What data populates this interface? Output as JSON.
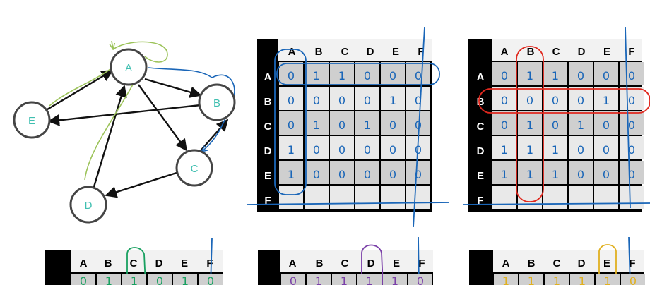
{
  "graph": {
    "nodes": [
      {
        "id": "A",
        "label": "A"
      },
      {
        "id": "B",
        "label": "B"
      },
      {
        "id": "C",
        "label": "C"
      },
      {
        "id": "D",
        "label": "D"
      },
      {
        "id": "E",
        "label": "E"
      }
    ],
    "edges": [
      {
        "from": "A",
        "to": "B"
      },
      {
        "from": "A",
        "to": "C"
      },
      {
        "from": "B",
        "to": "E"
      },
      {
        "from": "C",
        "to": "D"
      },
      {
        "from": "D",
        "to": "A"
      },
      {
        "from": "E",
        "to": "A"
      },
      {
        "from": "C",
        "to": "B"
      }
    ]
  },
  "matrices": {
    "col_headers": [
      "A",
      "B",
      "C",
      "D",
      "E",
      "F"
    ],
    "row_headers": [
      "A",
      "B",
      "C",
      "D",
      "E",
      "F"
    ],
    "matrix_1": {
      "annotation_color": "#1a66b8",
      "cells": [
        [
          "0",
          "1",
          "1",
          "0",
          "0",
          "0"
        ],
        [
          "0",
          "0",
          "0",
          "0",
          "1",
          "0"
        ],
        [
          "0",
          "1",
          "0",
          "1",
          "0",
          "0"
        ],
        [
          "1",
          "0",
          "0",
          "0",
          "0",
          "0"
        ],
        [
          "1",
          "0",
          "0",
          "0",
          "0",
          "0"
        ],
        [
          "",
          "",
          "",
          "",
          "",
          ""
        ]
      ]
    },
    "matrix_2": {
      "annotation_color": "#1a66b8",
      "highlight_color": "#e0281e",
      "cells": [
        [
          "0",
          "1",
          "1",
          "0",
          "0",
          "0"
        ],
        [
          "0",
          "0",
          "0",
          "0",
          "1",
          "0"
        ],
        [
          "0",
          "1",
          "0",
          "1",
          "0",
          "0"
        ],
        [
          "1",
          "1",
          "1",
          "0",
          "0",
          "0"
        ],
        [
          "1",
          "1",
          "1",
          "0",
          "0",
          "0"
        ],
        [
          "",
          "",
          "",
          "",
          "",
          ""
        ]
      ]
    },
    "matrix_3": {
      "accent_color": "#18a060",
      "cells": [
        [
          "0",
          "1",
          "1",
          "0",
          "1",
          "0"
        ]
      ]
    },
    "matrix_4": {
      "accent_color": "#7a3fa8",
      "cells": [
        [
          "0",
          "1",
          "1",
          "1",
          "1",
          "0"
        ]
      ]
    },
    "matrix_5": {
      "accent_color": "#e0b020",
      "cells": [
        [
          "1",
          "1",
          "1",
          "1",
          "1",
          "0"
        ]
      ]
    }
  },
  "colors": {
    "node_stroke": "#454545",
    "node_label": "#3fbfb0",
    "edge": "#111111",
    "green_trace": "#9cc35a",
    "blue_trace": "#1a66b8"
  }
}
